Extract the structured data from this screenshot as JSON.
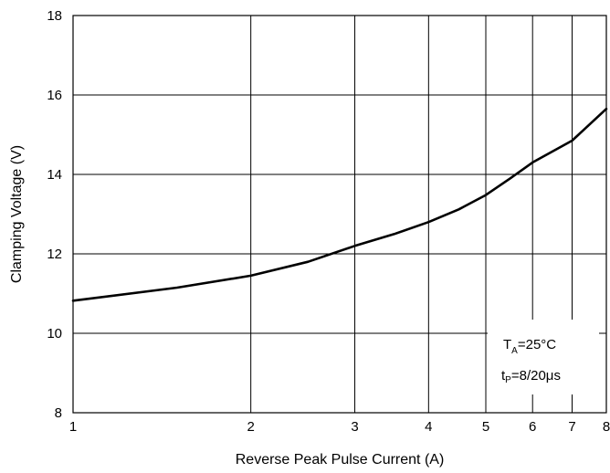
{
  "chart_data": {
    "type": "line",
    "title": "",
    "xlabel": "Reverse Peak Pulse Current (A)",
    "ylabel": "Clamping Voltage (V)",
    "xscale": "log",
    "xlim": [
      1,
      8
    ],
    "ylim": [
      8,
      18
    ],
    "xticks": [
      1,
      2,
      3,
      4,
      5,
      6,
      7,
      8
    ],
    "xtick_labels": [
      "1",
      "2",
      "3",
      "4",
      "5",
      "6",
      "7",
      "8"
    ],
    "yticks": [
      8,
      10,
      12,
      14,
      16,
      18
    ],
    "ytick_labels": [
      "8",
      "10",
      "12",
      "14",
      "16",
      "18"
    ],
    "grid": true,
    "series": [
      {
        "name": "",
        "color": "#000000",
        "x": [
          1,
          1.5,
          2,
          2.5,
          3,
          3.5,
          4,
          4.5,
          5,
          5.5,
          6,
          7,
          8
        ],
        "y": [
          10.82,
          11.15,
          11.45,
          11.8,
          12.2,
          12.5,
          12.8,
          13.12,
          13.48,
          13.9,
          14.3,
          14.85,
          15.65
        ]
      }
    ],
    "annotation": {
      "temp_main": "T",
      "temp_sub": "A",
      "temp_value": "=25°C",
      "pulse_main": "t",
      "pulse_sub": "P",
      "pulse_value": "=8/20μs"
    }
  }
}
